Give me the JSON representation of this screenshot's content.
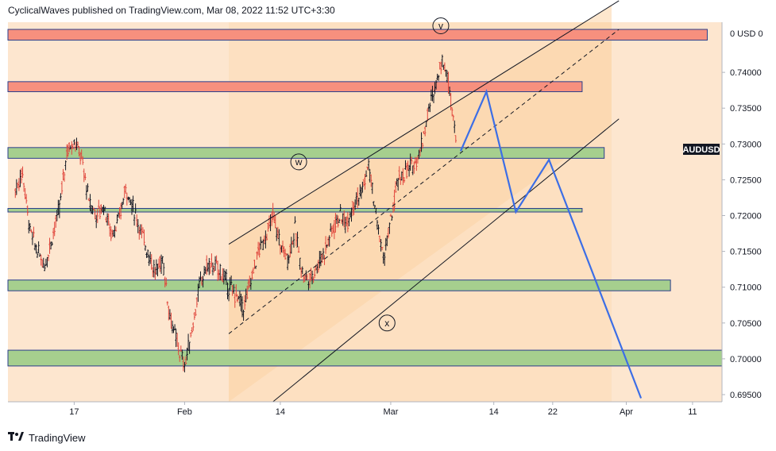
{
  "header": {
    "publisher_line": "CyclicalWaves published on TradingView.com, Mar 08, 2022 11:52 UTC+3:30"
  },
  "footer": {
    "brand": "TradingView",
    "logo_icon": "tradingview-logo-icon"
  },
  "symbol": "AUDUSD",
  "colors": {
    "background": "#fde6cf",
    "channel_fill": "#fbd3a6",
    "red_zone": "#f7907e",
    "green_zone": "#a6cf8e",
    "zone_border": "#2a3e8c",
    "projection": "#3c6ee6",
    "candle_up": "#131722",
    "candle_down": "#e0463c"
  },
  "chart_data": {
    "type": "candlestick",
    "symbol": "AUDUSD",
    "y_axis": {
      "range": [
        0.694,
        0.747
      ],
      "ticks": [
        "0.69500",
        "0.70000",
        "0.70500",
        "0.71000",
        "0.71500",
        "0.72000",
        "0.72500",
        "0.73000",
        "0.73500",
        "0.74000"
      ],
      "top_label": "0 USD 0"
    },
    "x_axis": {
      "ticks": [
        "17",
        "Feb",
        "14",
        "Mar",
        "14",
        "22",
        "Apr",
        "11"
      ],
      "tick_days": [
        17,
        32,
        45,
        60,
        74,
        82,
        92,
        101
      ],
      "day_range": [
        8,
        105
      ],
      "day_origin_note": "days counted from Jan 0, 2022"
    },
    "zones": [
      {
        "kind": "resistance",
        "color": "red",
        "y_low": 0.7445,
        "y_high": 0.746,
        "x_end_day": 103
      },
      {
        "kind": "resistance",
        "color": "red",
        "y_low": 0.7373,
        "y_high": 0.7387,
        "x_end_day": 86
      },
      {
        "kind": "support",
        "color": "green",
        "y_low": 0.728,
        "y_high": 0.7295,
        "x_end_day": 89
      },
      {
        "kind": "support",
        "color": "green",
        "y_low": 0.7205,
        "y_high": 0.721,
        "x_end_day": 86
      },
      {
        "kind": "support",
        "color": "green",
        "y_low": 0.7095,
        "y_high": 0.711,
        "x_end_day": 98
      },
      {
        "kind": "support",
        "color": "green",
        "y_low": 0.699,
        "y_high": 0.7012,
        "x_end_day": 105
      }
    ],
    "channel": {
      "upper": [
        [
          38,
          0.716
        ],
        [
          91,
          0.75
        ]
      ],
      "lower": [
        [
          44,
          0.694
        ],
        [
          91,
          0.7335
        ]
      ],
      "mid_dashed": [
        [
          38,
          0.7035
        ],
        [
          91,
          0.746
        ]
      ],
      "fill_x_range": [
        38,
        90
      ]
    },
    "wave_labels": [
      {
        "label": "v",
        "day": 66.8,
        "price": 0.7465
      },
      {
        "label": "w",
        "day": 47.5,
        "price": 0.7275
      },
      {
        "label": "x",
        "day": 59.5,
        "price": 0.705
      }
    ],
    "projection_path": [
      [
        69.5,
        0.729
      ],
      [
        73,
        0.7373
      ],
      [
        77,
        0.7205
      ],
      [
        81.5,
        0.7278
      ],
      [
        94,
        0.6945
      ]
    ],
    "candles_sampled": [
      [
        9,
        0.7235
      ],
      [
        10,
        0.726
      ],
      [
        11,
        0.718
      ],
      [
        12,
        0.715
      ],
      [
        13,
        0.713
      ],
      [
        14,
        0.717
      ],
      [
        15,
        0.721
      ],
      [
        16,
        0.729
      ],
      [
        17,
        0.7305
      ],
      [
        18,
        0.728
      ],
      [
        19,
        0.722
      ],
      [
        20,
        0.72
      ],
      [
        21,
        0.7215
      ],
      [
        22,
        0.7175
      ],
      [
        23,
        0.719
      ],
      [
        24,
        0.724
      ],
      [
        25,
        0.721
      ],
      [
        26,
        0.718
      ],
      [
        27,
        0.715
      ],
      [
        28,
        0.712
      ],
      [
        29,
        0.714
      ],
      [
        30,
        0.706
      ],
      [
        31,
        0.702
      ],
      [
        32,
        0.699
      ],
      [
        33,
        0.704
      ],
      [
        34,
        0.71
      ],
      [
        35,
        0.713
      ],
      [
        36,
        0.713
      ],
      [
        37,
        0.712
      ],
      [
        38,
        0.71
      ],
      [
        39,
        0.709
      ],
      [
        40,
        0.707
      ],
      [
        41,
        0.711
      ],
      [
        42,
        0.715
      ],
      [
        43,
        0.717
      ],
      [
        44,
        0.72
      ],
      [
        45,
        0.716
      ],
      [
        46,
        0.714
      ],
      [
        47,
        0.718
      ],
      [
        48,
        0.712
      ],
      [
        49,
        0.711
      ],
      [
        50,
        0.713
      ],
      [
        51,
        0.715
      ],
      [
        52,
        0.718
      ],
      [
        53,
        0.72
      ],
      [
        54,
        0.719
      ],
      [
        55,
        0.722
      ],
      [
        56,
        0.723
      ],
      [
        57,
        0.727
      ],
      [
        58,
        0.72
      ],
      [
        59,
        0.714
      ],
      [
        60,
        0.719
      ],
      [
        61,
        0.725
      ],
      [
        62,
        0.726
      ],
      [
        63,
        0.727
      ],
      [
        64,
        0.729
      ],
      [
        65,
        0.734
      ],
      [
        66,
        0.738
      ],
      [
        67,
        0.742
      ],
      [
        68,
        0.738
      ],
      [
        69,
        0.73
      ]
    ]
  }
}
